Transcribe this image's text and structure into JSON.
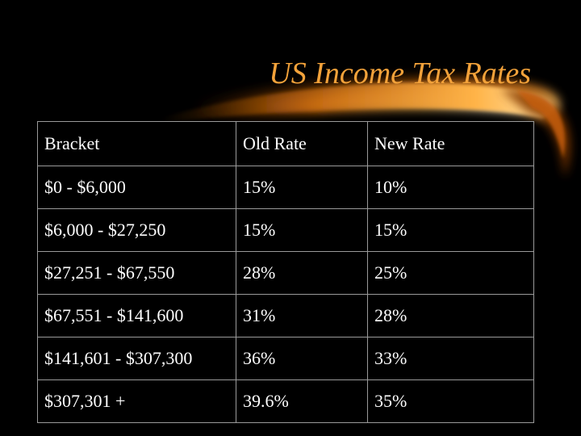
{
  "slide": {
    "title": "US Income Tax Rates",
    "accent_color": "#f3a23a",
    "background_color": "#000000"
  },
  "table": {
    "headers": [
      "Bracket",
      "Old Rate",
      "New Rate"
    ],
    "rows": [
      [
        "$0 - $6,000",
        "15%",
        "10%"
      ],
      [
        "$6,000 - $27,250",
        "15%",
        "15%"
      ],
      [
        "$27,251 - $67,550",
        "28%",
        "25%"
      ],
      [
        "$67,551 - $141,600",
        "31%",
        "28%"
      ],
      [
        "$141,601 - $307,300",
        "36%",
        "33%"
      ],
      [
        "$307,301 +",
        "39.6%",
        "35%"
      ]
    ]
  }
}
